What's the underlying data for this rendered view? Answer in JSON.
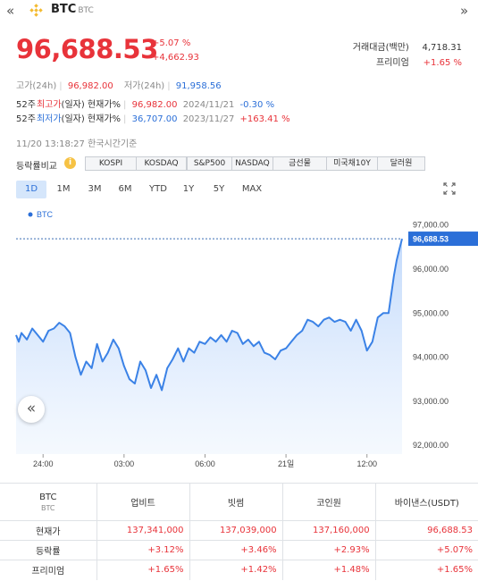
{
  "topbar": {
    "prev_icon": "chevron-double-left-icon",
    "next_icon": "chevron-double-right-icon"
  },
  "coin": {
    "name": "BTC",
    "symbol": "BTC"
  },
  "price": {
    "current": "96,688.53",
    "change_pct": "+5.07 %",
    "change_abs": "+4,662.93"
  },
  "stats": {
    "volume_label": "거래대금(백만)",
    "volume_value": "4,718.31",
    "premium_label": "프리미엄",
    "premium_value": "+1.65 %"
  },
  "range24h": {
    "high_label": "고가(24h)",
    "high_value": "96,982.00",
    "low_label": "저가(24h)",
    "low_value": "91,958.56"
  },
  "week52": {
    "high": {
      "prefix": "52주",
      "label": "최고가",
      "suffix": "(일자) 현재가%",
      "value": "96,982.00",
      "date": "2024/11/21",
      "pct": "-0.30 %"
    },
    "low": {
      "prefix": "52주",
      "label": "최저가",
      "suffix": "(일자) 현재가%",
      "value": "36,707.00",
      "date": "2023/11/27",
      "pct": "+163.41 %"
    }
  },
  "timestamp": "11/20 13:18:27  한국시간기준",
  "compare": {
    "label": "등락률비교",
    "info_icon": "info-icon",
    "buttons": [
      "KOSPI",
      "KOSDAQ",
      "S&P500",
      "NASDAQ",
      "금선물",
      "미국채10Y",
      "달러원"
    ]
  },
  "timeframes": [
    "1D",
    "1M",
    "3M",
    "6M",
    "YTD",
    "1Y",
    "5Y",
    "MAX"
  ],
  "active_timeframe": "1D",
  "expand_icon": "expand-icon",
  "colors": {
    "up": "#e8333a",
    "down": "#2b6fd8",
    "line": "#3b82e6",
    "badge": "#2b6fd8"
  },
  "chart_data": {
    "type": "area",
    "legend": "BTC",
    "current_label": "96,688.53",
    "current": 96688.53,
    "ylim": [
      91800,
      97400
    ],
    "y_ticks": [
      "97,000.00",
      "96,000.00",
      "95,000.00",
      "94,000.00",
      "93,000.00",
      "92,000.00"
    ],
    "y_tick_values": [
      97000,
      96000,
      95000,
      94000,
      93000,
      92000
    ],
    "x_ticks": [
      "24:00",
      "03:00",
      "06:00",
      "21일",
      "12:00"
    ],
    "x_tick_hours": [
      0,
      3,
      6,
      9,
      12
    ],
    "x_range": [
      -1,
      13.3
    ],
    "series": [
      {
        "name": "BTC",
        "x": [
          -1,
          -0.9,
          -0.8,
          -0.6,
          -0.4,
          -0.2,
          0,
          0.2,
          0.4,
          0.6,
          0.8,
          1.0,
          1.2,
          1.4,
          1.6,
          1.8,
          2.0,
          2.2,
          2.4,
          2.6,
          2.8,
          3.0,
          3.2,
          3.4,
          3.6,
          3.8,
          4.0,
          4.2,
          4.4,
          4.6,
          4.8,
          5.0,
          5.2,
          5.4,
          5.6,
          5.8,
          6.0,
          6.2,
          6.4,
          6.6,
          6.8,
          7.0,
          7.2,
          7.4,
          7.6,
          7.8,
          8.0,
          8.2,
          8.4,
          8.6,
          8.8,
          9.0,
          9.2,
          9.4,
          9.6,
          9.8,
          10.0,
          10.2,
          10.4,
          10.6,
          10.8,
          11.0,
          11.2,
          11.4,
          11.6,
          11.8,
          12.0,
          12.2,
          12.4,
          12.6,
          12.8,
          13.0,
          13.1,
          13.2,
          13.3
        ],
        "values": [
          94500,
          94350,
          94550,
          94400,
          94650,
          94500,
          94350,
          94600,
          94650,
          94780,
          94700,
          94550,
          94000,
          93600,
          93900,
          93750,
          94300,
          93900,
          94100,
          94400,
          94200,
          93800,
          93500,
          93400,
          93900,
          93700,
          93300,
          93600,
          93250,
          93750,
          93950,
          94200,
          93900,
          94200,
          94100,
          94350,
          94300,
          94450,
          94350,
          94500,
          94350,
          94600,
          94550,
          94300,
          94400,
          94250,
          94350,
          94100,
          94050,
          93950,
          94150,
          94200,
          94350,
          94500,
          94600,
          94850,
          94800,
          94700,
          94850,
          94900,
          94800,
          94850,
          94800,
          94600,
          94850,
          94600,
          94150,
          94350,
          94900,
          95000,
          95000,
          95850,
          96200,
          96450,
          96688.53
        ]
      }
    ]
  },
  "table": {
    "header": {
      "title": "BTC",
      "sub": "BTC",
      "cols": [
        "업비트",
        "빗썸",
        "코인원",
        "바이낸스(USDT)"
      ]
    },
    "rows": [
      {
        "label": "현재가",
        "values": [
          "137,341,000",
          "137,039,000",
          "137,160,000",
          "96,688.53"
        ]
      },
      {
        "label": "등락률",
        "values": [
          "+3.12%",
          "+3.46%",
          "+2.93%",
          "+5.07%"
        ]
      },
      {
        "label": "프리미엄",
        "values": [
          "+1.65%",
          "+1.42%",
          "+1.48%",
          "+1.65%"
        ]
      }
    ]
  }
}
